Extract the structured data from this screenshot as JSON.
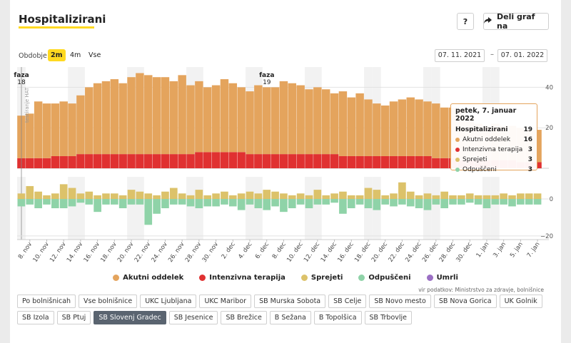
{
  "title": "Hospitalizirani",
  "help_label": "?",
  "share_label": "Deli graf na",
  "period": {
    "label": "Obdobje",
    "options": [
      "2m",
      "4m",
      "Vse"
    ],
    "active": "2m"
  },
  "date_from": "07. 11. 2021",
  "date_sep": "–",
  "date_to": "07. 01. 2022",
  "phase_markers": [
    {
      "label": "faza",
      "number": "18"
    },
    {
      "label": "faza",
      "number": "19"
    }
  ],
  "annotation_vertical": "testiranje HAT",
  "tooltip": {
    "date": "petek, 7. januar 2022",
    "rows": [
      {
        "label": "Hospitalizirani",
        "value": "19"
      },
      {
        "label": "Akutni oddelek",
        "value": "16",
        "color": "#e4a45d"
      },
      {
        "label": "Intenzivna terapija",
        "value": "3",
        "color": "#e03131"
      },
      {
        "label": "Sprejeti",
        "value": "3",
        "color": "#dcc26a"
      },
      {
        "label": "Odpuščeni",
        "value": "3",
        "color": "#8fd3a8"
      }
    ]
  },
  "legend": [
    {
      "label": "Akutni oddelek",
      "color": "#e4a45d"
    },
    {
      "label": "Intenzivna terapija",
      "color": "#e03131"
    },
    {
      "label": "Sprejeti",
      "color": "#dcc26a"
    },
    {
      "label": "Odpuščeni",
      "color": "#8fd3a8"
    },
    {
      "label": "Umrli",
      "color": "#9b6fc4"
    }
  ],
  "source": "vir podatkov: Ministrstvo za zdravje, bolnišnice",
  "filters": [
    "Po bolnišnicah",
    "Vse bolnišnice",
    "UKC Ljubljana",
    "UKC Maribor",
    "SB Murska Sobota",
    "SB Celje",
    "SB Novo mesto",
    "SB Nova Gorica",
    "UK Golnik",
    "SB Izola",
    "SB Ptuj",
    "SB Slovenj Gradec",
    "SB Jesenice",
    "SB Brežice",
    "B Sežana",
    "B Topolšica",
    "SB Trbovlje"
  ],
  "active_filter": "SB Slovenj Gradec",
  "colors": {
    "acute": "#e4a45d",
    "icu": "#e03131",
    "admitted": "#dcc26a",
    "discharged": "#8fd3a8",
    "deceased": "#9b6fc4",
    "accent": "#ffd920"
  },
  "chart_data": {
    "type": "bar",
    "title": "Hospitalizirani",
    "x_start": "2021-11-07",
    "x_end": "2022-01-07",
    "x_tick_labels": [
      "8. nov",
      "10. nov",
      "12. nov",
      "14. nov",
      "16. nov",
      "18. nov",
      "20. nov",
      "22. nov",
      "24. nov",
      "26. nov",
      "28. nov",
      "30. nov",
      "2. dec",
      "4. dec",
      "6. dec",
      "8. dec",
      "10. dec",
      "12. dec",
      "14. dec",
      "16. dec",
      "18. dec",
      "20. dec",
      "22. dec",
      "24. dec",
      "26. dec",
      "28. dec",
      "30. dec",
      "1. jan",
      "3. jan",
      "5. jan",
      "7. jan"
    ],
    "top_panel": {
      "stacked": true,
      "ylim": [
        0,
        50
      ],
      "y_ticks": [
        20,
        40
      ],
      "series": [
        {
          "name": "Intenzivna terapija",
          "values": [
            5,
            5,
            5,
            5,
            6,
            6,
            6,
            7,
            7,
            7,
            7,
            7,
            7,
            7,
            7,
            7,
            7,
            7,
            7,
            7,
            7,
            8,
            8,
            8,
            8,
            8,
            8,
            7,
            7,
            7,
            7,
            7,
            7,
            7,
            7,
            7,
            7,
            7,
            6,
            6,
            6,
            6,
            6,
            6,
            6,
            6,
            6,
            6,
            6,
            5,
            5,
            5,
            4,
            4,
            4,
            4,
            4,
            4,
            4,
            3,
            3,
            3
          ]
        },
        {
          "name": "Akutni oddelek",
          "values": [
            21,
            22,
            28,
            27,
            26,
            27,
            26,
            29,
            33,
            35,
            36,
            37,
            35,
            38,
            40,
            39,
            38,
            38,
            36,
            39,
            34,
            35,
            32,
            33,
            36,
            34,
            32,
            31,
            34,
            33,
            33,
            36,
            35,
            34,
            32,
            33,
            32,
            30,
            32,
            29,
            31,
            28,
            26,
            25,
            27,
            28,
            29,
            28,
            27,
            27,
            25,
            25,
            25,
            21,
            18,
            17,
            18,
            17,
            17,
            17,
            16,
            16
          ]
        }
      ]
    },
    "bottom_panel": {
      "ylim": [
        -22,
        12
      ],
      "y_ticks": [
        0,
        -20
      ],
      "series": [
        {
          "name": "Sprejeti",
          "values": [
            3,
            7,
            4,
            2,
            3,
            8,
            6,
            3,
            4,
            2,
            3,
            3,
            2,
            5,
            4,
            3,
            2,
            4,
            6,
            3,
            2,
            5,
            2,
            3,
            4,
            2,
            3,
            4,
            3,
            5,
            4,
            3,
            2,
            3,
            2,
            5,
            2,
            3,
            4,
            2,
            2,
            6,
            5,
            2,
            3,
            9,
            4,
            2,
            3,
            2,
            4,
            2,
            2,
            3,
            2,
            2,
            2,
            3,
            2,
            3,
            3,
            3
          ]
        },
        {
          "name": "Odpuščeni",
          "values": [
            -4,
            -3,
            -5,
            -3,
            -5,
            -5,
            -4,
            -2,
            -3,
            -7,
            -3,
            -3,
            -5,
            -3,
            -3,
            -14,
            -8,
            -5,
            -3,
            -3,
            -4,
            -5,
            -4,
            -4,
            -3,
            -4,
            -6,
            -3,
            -5,
            -6,
            -4,
            -7,
            -5,
            -3,
            -5,
            -3,
            -3,
            -2,
            -8,
            -5,
            -3,
            -5,
            -6,
            -3,
            -4,
            -3,
            -4,
            -5,
            -6,
            -3,
            -5,
            -3,
            -3,
            -2,
            -3,
            -5,
            -3,
            -3,
            -4,
            -3,
            -3,
            -3
          ]
        },
        {
          "name": "Umrli",
          "values": [
            0,
            0,
            0,
            0,
            0,
            0,
            0,
            0,
            0,
            0,
            0,
            0,
            0,
            0,
            0,
            0,
            0,
            0,
            0,
            0,
            0,
            0,
            0,
            0,
            0,
            0,
            0,
            0,
            0,
            0,
            0,
            0,
            0,
            0,
            0,
            0,
            0,
            0,
            0,
            0,
            0,
            0,
            0,
            0,
            0,
            0,
            0,
            0,
            0,
            0,
            0,
            0,
            0,
            0,
            0,
            0,
            0,
            0,
            0,
            0,
            0,
            0
          ]
        }
      ]
    },
    "xlabel": "",
    "ylabel": ""
  }
}
